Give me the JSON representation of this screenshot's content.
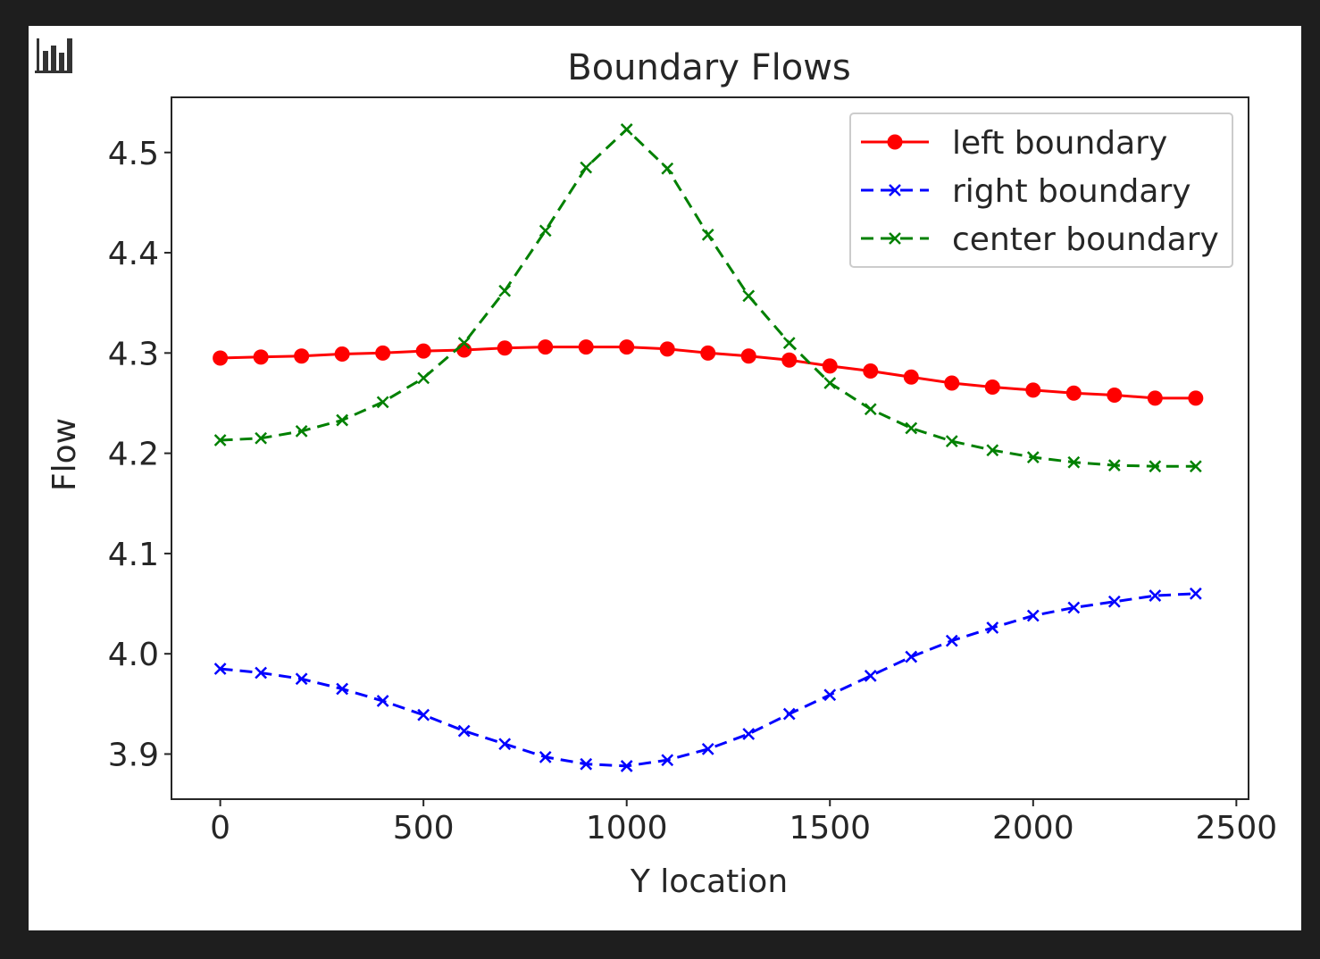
{
  "widget": {
    "icon": "bar-chart-icon"
  },
  "chart_data": {
    "type": "line",
    "title": "Boundary Flows",
    "xlabel": "Y location",
    "ylabel": "Flow",
    "xlim": [
      -120,
      2530
    ],
    "ylim": [
      3.855,
      4.555
    ],
    "xticks": [
      0,
      500,
      1000,
      1500,
      2000,
      2500
    ],
    "yticks": [
      3.9,
      4.0,
      4.1,
      4.2,
      4.3,
      4.4,
      4.5
    ],
    "legend_position": "upper right",
    "grid": false,
    "x": [
      0,
      100,
      200,
      300,
      400,
      500,
      600,
      700,
      800,
      900,
      1000,
      1100,
      1200,
      1300,
      1400,
      1500,
      1600,
      1700,
      1800,
      1900,
      2000,
      2100,
      2200,
      2300,
      2400
    ],
    "series": [
      {
        "name": "left boundary",
        "color": "#ff0000",
        "linestyle": "solid",
        "marker": "circle",
        "values": [
          4.295,
          4.296,
          4.297,
          4.299,
          4.3,
          4.302,
          4.303,
          4.305,
          4.306,
          4.306,
          4.306,
          4.304,
          4.3,
          4.297,
          4.293,
          4.287,
          4.282,
          4.276,
          4.27,
          4.266,
          4.263,
          4.26,
          4.258,
          4.255,
          4.255
        ]
      },
      {
        "name": "right boundary",
        "color": "#0000ff",
        "linestyle": "dashed",
        "marker": "x",
        "values": [
          3.985,
          3.981,
          3.975,
          3.965,
          3.953,
          3.939,
          3.923,
          3.91,
          3.897,
          3.89,
          3.888,
          3.894,
          3.905,
          3.92,
          3.94,
          3.959,
          3.978,
          3.997,
          4.013,
          4.026,
          4.038,
          4.046,
          4.052,
          4.058,
          4.06
        ]
      },
      {
        "name": "center boundary",
        "color": "#008000",
        "linestyle": "dashed",
        "marker": "x",
        "values": [
          4.213,
          4.215,
          4.222,
          4.233,
          4.251,
          4.275,
          4.31,
          4.362,
          4.422,
          4.485,
          4.523,
          4.484,
          4.418,
          4.357,
          4.31,
          4.27,
          4.244,
          4.225,
          4.212,
          4.203,
          4.196,
          4.191,
          4.188,
          4.187,
          4.187
        ]
      }
    ]
  }
}
